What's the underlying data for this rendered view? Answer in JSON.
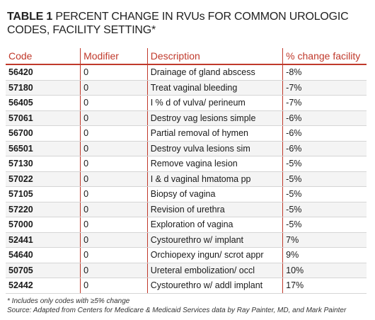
{
  "title": {
    "label": "TABLE 1",
    "text": "PERCENT CHANGE IN RVUs FOR COMMON UROLOGIC CODES, FACILITY SETTING*"
  },
  "table": {
    "headers": [
      "Code",
      "Modifier",
      "Description",
      "% change facility"
    ],
    "rows": [
      [
        "56420",
        "0",
        "Drainage of gland abscess",
        "-8%"
      ],
      [
        "57180",
        "0",
        "Treat vaginal bleeding",
        "-7%"
      ],
      [
        "56405",
        "0",
        "I % d of vulva/ perineum",
        "-7%"
      ],
      [
        "57061",
        "0",
        "Destroy vag lesions simple",
        "-6%"
      ],
      [
        "56700",
        "0",
        "Partial removal of hymen",
        "-6%"
      ],
      [
        "56501",
        "0",
        "Destroy vulva lesions sim",
        "-6%"
      ],
      [
        "57130",
        "0",
        "Remove vagina lesion",
        "-5%"
      ],
      [
        "57022",
        "0",
        "I & d vaginal hmatoma pp",
        "-5%"
      ],
      [
        "57105",
        "0",
        "Biopsy of vagina",
        "-5%"
      ],
      [
        "57220",
        "0",
        "Revision of urethra",
        "-5%"
      ],
      [
        "57000",
        "0",
        "Exploration of vagina",
        "-5%"
      ],
      [
        "52441",
        "0",
        "Cystourethro w/ implant",
        "7%"
      ],
      [
        "54640",
        "0",
        "Orchiopexy ingun/ scrot appr",
        "9%"
      ],
      [
        "50705",
        "0",
        "Ureteral embolization/ occl",
        "10%"
      ],
      [
        "52442",
        "0",
        "Cystourethro w/ addl implant",
        "17%"
      ]
    ]
  },
  "footnotes": {
    "note": "* Includes only codes with ≥5% change",
    "source": "Source: Adapted from Centers for Medicare & Medicaid Services data by Ray Painter, MD, and Mark Painter"
  },
  "colors": {
    "accent": "#c0392b",
    "row_alt": "#f4f4f4"
  }
}
